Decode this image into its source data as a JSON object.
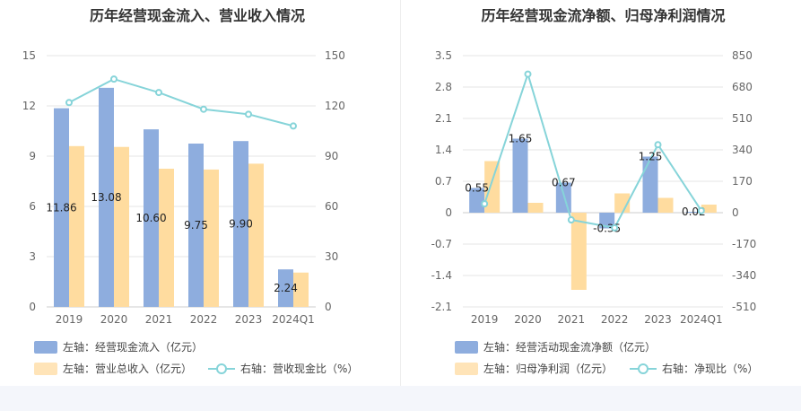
{
  "chart_data": [
    {
      "type": "bar",
      "title": "历年经营现金流入、营业收入情况",
      "categories": [
        "2019",
        "2020",
        "2021",
        "2022",
        "2023",
        "2024Q1"
      ],
      "left_axis": {
        "min": 0,
        "max": 15,
        "ticks": [
          "0",
          "3",
          "6",
          "9",
          "12",
          "15"
        ]
      },
      "right_axis": {
        "min": 0,
        "max": 150,
        "ticks": [
          "0",
          "30",
          "60",
          "90",
          "120",
          "150"
        ]
      },
      "series": [
        {
          "name": "左轴：经营现金流入（亿元）",
          "kind": "bar",
          "axis": "left",
          "color": "#8eadde",
          "values": [
            11.86,
            13.08,
            10.6,
            9.75,
            9.9,
            2.24
          ],
          "labels": [
            "11.86",
            "13.08",
            "10.60",
            "9.75",
            "9.90",
            "2.24"
          ]
        },
        {
          "name": "左轴：营业总收入（亿元）",
          "kind": "bar",
          "axis": "left",
          "color": "#ffdc9f",
          "values": [
            9.6,
            9.55,
            8.25,
            8.2,
            8.55,
            2.05
          ]
        },
        {
          "name": "右轴：营收现金比（%）",
          "kind": "line",
          "axis": "right",
          "color": "#86d4d9",
          "values": [
            122,
            136,
            128,
            118,
            115,
            108
          ]
        }
      ]
    },
    {
      "type": "bar",
      "title": "历年经营现金流净额、归母净利润情况",
      "categories": [
        "2019",
        "2020",
        "2021",
        "2022",
        "2023",
        "2024Q1"
      ],
      "left_axis": {
        "min": -2.1,
        "max": 3.5,
        "ticks": [
          "-2.1",
          "-1.4",
          "-0.7",
          "0",
          "0.7",
          "1.4",
          "2.1",
          "2.8",
          "3.5"
        ]
      },
      "right_axis": {
        "min": -510,
        "max": 850,
        "ticks": [
          "-510",
          "-340",
          "-170",
          "0",
          "170",
          "340",
          "510",
          "680",
          "850"
        ]
      },
      "series": [
        {
          "name": "左轴：经营活动现金流净额（亿元）",
          "kind": "bar",
          "axis": "left",
          "color": "#8eadde",
          "values": [
            0.55,
            1.65,
            0.67,
            -0.35,
            1.25,
            0.02
          ],
          "labels": [
            "0.55",
            "1.65",
            "0.67",
            "-0.35",
            "1.25",
            "0.02"
          ]
        },
        {
          "name": "左轴：归母净利润（亿元）",
          "kind": "bar",
          "axis": "left",
          "color": "#ffdc9f",
          "values": [
            1.15,
            0.22,
            -1.72,
            0.43,
            0.33,
            0.18
          ]
        },
        {
          "name": "右轴：净现比（%）",
          "kind": "line",
          "axis": "right",
          "color": "#86d4d9",
          "values": [
            48,
            750,
            -39,
            -82,
            368,
            11
          ]
        }
      ]
    }
  ]
}
